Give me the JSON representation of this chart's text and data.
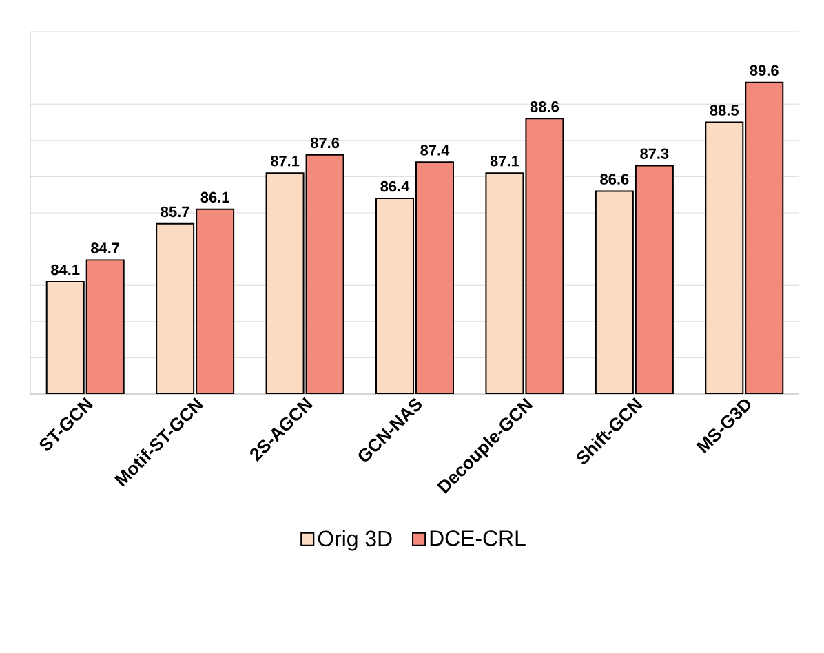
{
  "chart_data": {
    "type": "bar",
    "categories": [
      "ST-GCN",
      "Motif-ST-GCN",
      "2S-AGCN",
      "GCN-NAS",
      "Decouple-GCN",
      "Shift-GCN",
      "MS-G3D"
    ],
    "series": [
      {
        "name": "Orig 3D",
        "color": "#fbdcc2",
        "values": [
          84.1,
          85.7,
          87.1,
          86.4,
          87.1,
          86.6,
          88.5
        ]
      },
      {
        "name": "DCE-CRL",
        "color": "#f28b7c",
        "values": [
          84.7,
          86.1,
          87.6,
          87.4,
          88.6,
          87.3,
          89.6
        ]
      }
    ],
    "ylim": [
      81,
      91
    ],
    "yticks": [
      {
        "value": 81,
        "label": null
      },
      {
        "value": 82,
        "label": null
      },
      {
        "value": 83,
        "label": null
      },
      {
        "value": 84,
        "label": null
      },
      {
        "value": 85,
        "label": null
      },
      {
        "value": 86,
        "label": null
      },
      {
        "value": 87,
        "label": null
      },
      {
        "value": 88,
        "label": null
      },
      {
        "value": 89,
        "label": null
      },
      {
        "value": 90,
        "label": null
      },
      {
        "value": 91,
        "label": null
      }
    ],
    "grid": "y",
    "tick_labels": "x",
    "data_labels": true,
    "legend": "bottom"
  }
}
